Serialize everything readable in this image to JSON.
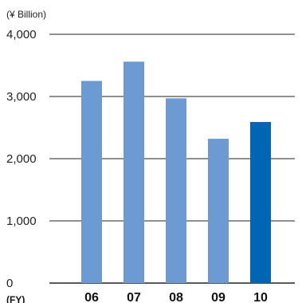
{
  "chart_data": {
    "type": "bar",
    "unit_label": "(¥ Billion)",
    "x_axis_label": "(FY)",
    "categories": [
      "06",
      "07",
      "08",
      "09",
      "10"
    ],
    "values": [
      3250,
      3560,
      2970,
      2320,
      2590
    ],
    "ylim": [
      0,
      4000
    ],
    "yticks": [
      0,
      1000,
      2000,
      3000,
      4000
    ],
    "ytick_labels": [
      "0",
      "1,000",
      "2,000",
      "3,000",
      "4,000"
    ],
    "grid": true,
    "colors": {
      "bar": "#6b9bd2",
      "highlight_bar": "#0066b3",
      "grid": "#222222"
    },
    "highlight_index": 4
  }
}
